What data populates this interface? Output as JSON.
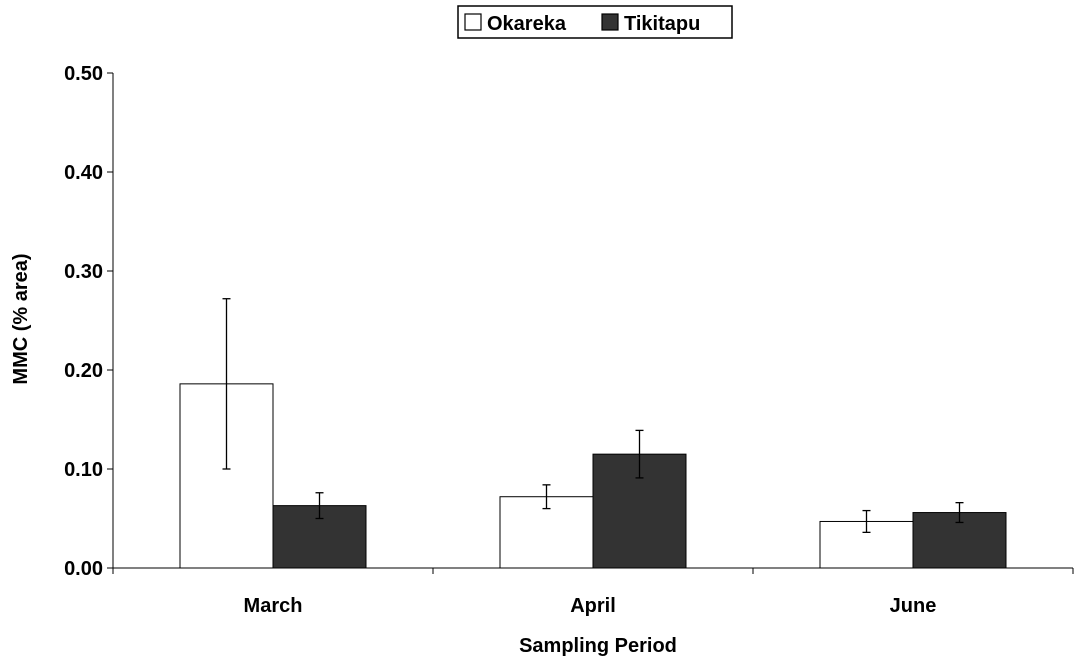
{
  "chart_data": {
    "type": "bar",
    "title": "",
    "xlabel": "Sampling Period",
    "ylabel": "MMC (% area)",
    "categories": [
      "March",
      "April",
      "June"
    ],
    "ylim": [
      0,
      0.5
    ],
    "yticks": [
      "0.00",
      "0.10",
      "0.20",
      "0.30",
      "0.40",
      "0.50"
    ],
    "grid": false,
    "legend_position": "top-center",
    "series": [
      {
        "name": "Okareka",
        "color": "#ffffff",
        "values": [
          0.186,
          0.072,
          0.047
        ],
        "error": [
          0.086,
          0.012,
          0.011
        ]
      },
      {
        "name": "Tikitapu",
        "color": "#333333",
        "values": [
          0.063,
          0.115,
          0.056
        ],
        "error": [
          0.013,
          0.024,
          0.01
        ]
      }
    ]
  }
}
